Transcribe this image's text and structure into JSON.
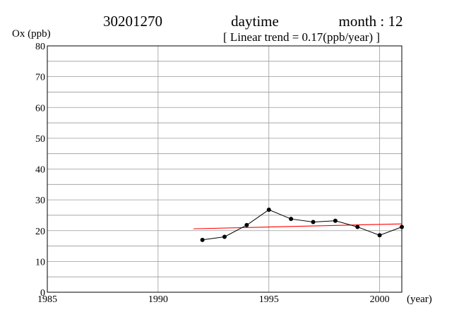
{
  "header": {
    "station": "30201270",
    "period": "daytime",
    "month_label": "month : 12",
    "trend_label": "[ Linear trend = 0.17(ppb/year) ]"
  },
  "chart_data": {
    "type": "line",
    "title": "",
    "ylabel": "Ox (ppb)",
    "xlabel": "(year)",
    "xlim": [
      1985,
      2001
    ],
    "ylim": [
      0,
      80
    ],
    "x_ticks": [
      1985,
      1990,
      1995,
      2000
    ],
    "y_ticks": [
      0,
      10,
      20,
      30,
      40,
      50,
      60,
      70,
      80
    ],
    "grid": true,
    "series": [
      {
        "x": [
          1992,
          1993,
          1994,
          1995,
          1996,
          1997,
          1998,
          1999,
          2000,
          2001
        ],
        "values": [
          17.0,
          18.0,
          21.8,
          26.8,
          23.8,
          22.8,
          23.2,
          21.2,
          18.5,
          21.2
        ],
        "color": "#000000"
      }
    ],
    "trend_line": {
      "slope": 0.17,
      "x": [
        1991.6,
        2001
      ],
      "values": [
        20.6,
        22.2
      ],
      "color": "#ff0000"
    }
  }
}
